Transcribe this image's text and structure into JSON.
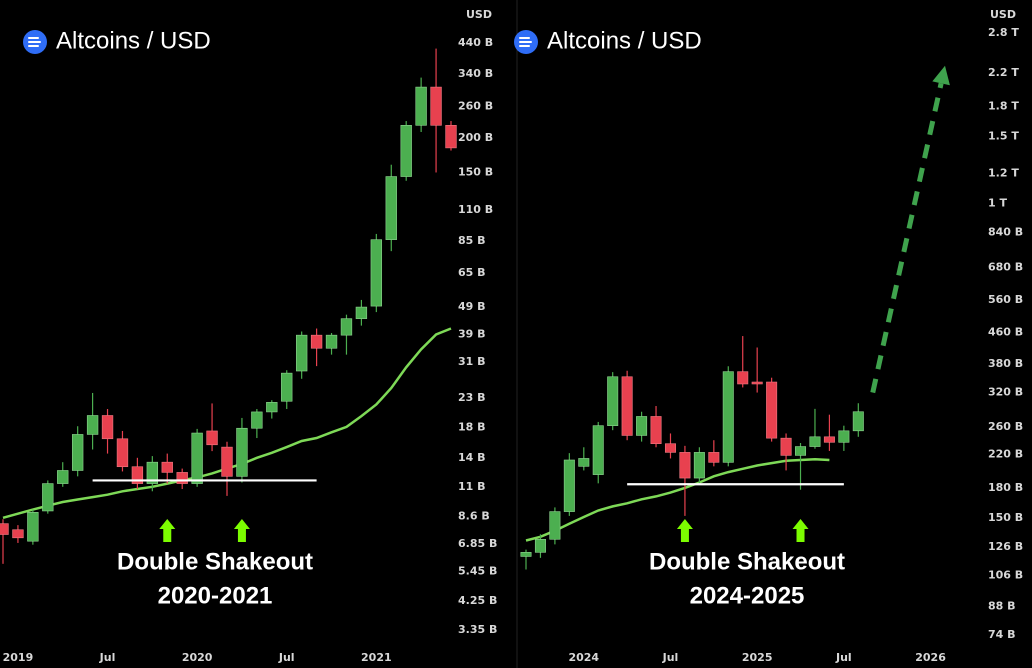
{
  "chart_data": [
    {
      "type": "candlestick",
      "title": "Altcoins / USD",
      "ylabel": "USD",
      "log_y": true,
      "x": [
        "2018-12",
        "2019-01",
        "2019-02",
        "2019-03",
        "2019-04",
        "2019-05",
        "2019-06",
        "2019-07",
        "2019-08",
        "2019-09",
        "2019-10",
        "2019-11",
        "2019-12",
        "2020-01",
        "2020-02",
        "2020-03",
        "2020-04",
        "2020-05",
        "2020-06",
        "2020-07",
        "2020-08",
        "2020-09",
        "2020-10",
        "2020-11",
        "2020-12",
        "2021-01",
        "2021-02",
        "2021-03",
        "2021-04",
        "2021-05",
        "2021-06"
      ],
      "open": [
        8.1,
        7.7,
        7.0,
        9.0,
        11.3,
        12.6,
        17.0,
        19.9,
        16.4,
        13.0,
        11.3,
        13.5,
        12.4,
        11.3,
        17.5,
        15.3,
        12.0,
        17.9,
        20.5,
        22.4,
        28.8,
        38.8,
        34.8,
        38.8,
        44.5,
        49.4,
        85.8,
        145,
        222,
        305,
        222
      ],
      "high": [
        8.4,
        8.0,
        9.1,
        11.6,
        13.5,
        18.2,
        24,
        21,
        17.5,
        14,
        14.2,
        14.5,
        12.8,
        17.8,
        22,
        16,
        19.5,
        21,
        22.6,
        29,
        40,
        41,
        39.5,
        46,
        52,
        90,
        160,
        230,
        330,
        420,
        230
      ],
      "low": [
        5.8,
        6.9,
        6.8,
        8.8,
        11.0,
        12.0,
        15,
        14.5,
        12.5,
        10.8,
        10.6,
        11.3,
        10.8,
        11.0,
        14.8,
        10.2,
        11.4,
        16.5,
        19.4,
        21,
        27,
        30,
        33,
        33,
        42,
        47,
        78,
        140,
        210,
        150,
        180
      ],
      "close": [
        7.4,
        7.2,
        8.9,
        11.3,
        12.6,
        17.0,
        19.9,
        16.4,
        13.0,
        11.3,
        13.5,
        12.4,
        11.3,
        17.2,
        15.6,
        12.0,
        17.9,
        20.5,
        22.2,
        28.3,
        38.8,
        34.8,
        38.8,
        44.5,
        49,
        85.8,
        145,
        222,
        305,
        222,
        184
      ],
      "ma": [
        8.5,
        8.8,
        9.1,
        9.4,
        9.7,
        9.9,
        10.1,
        10.3,
        10.6,
        10.8,
        11.0,
        11.3,
        11.6,
        11.9,
        12.3,
        12.8,
        13.3,
        14.0,
        14.6,
        15.3,
        16.1,
        16.5,
        17.3,
        18.1,
        19.8,
        21.8,
        25,
        29.7,
        34.5,
        39,
        41
      ],
      "colors": {
        "up": "#4caf50",
        "down": "#e8414f",
        "ma": "#7ed957",
        "support": "#ffffff",
        "arrow": "#7cfc00"
      },
      "xlim": [
        "2018-12",
        "2021-06"
      ],
      "xticks": [
        {
          "value": "2019-01",
          "label": "2019"
        },
        {
          "value": "2019-07",
          "label": "Jul"
        },
        {
          "value": "2020-01",
          "label": "2020"
        },
        {
          "value": "2020-07",
          "label": "Jul"
        },
        {
          "value": "2021-01",
          "label": "2021"
        }
      ],
      "ylim": [
        2.44,
        629
      ],
      "yticks": [
        {
          "value": 440,
          "label": "440 B"
        },
        {
          "value": 340,
          "label": "340 B"
        },
        {
          "value": 260,
          "label": "260 B"
        },
        {
          "value": 200,
          "label": "200 B"
        },
        {
          "value": 150,
          "label": "150 B"
        },
        {
          "value": 110,
          "label": "110 B"
        },
        {
          "value": 85,
          "label": "85 B"
        },
        {
          "value": 65,
          "label": "65 B"
        },
        {
          "value": 49,
          "label": "49 B"
        },
        {
          "value": 39,
          "label": "39 B"
        },
        {
          "value": 31,
          "label": "31 B"
        },
        {
          "value": 23,
          "label": "23 B"
        },
        {
          "value": 18,
          "label": "18 B"
        },
        {
          "value": 14,
          "label": "14 B"
        },
        {
          "value": 11,
          "label": "11 B"
        },
        {
          "value": 8.6,
          "label": "8.6 B"
        },
        {
          "value": 6.85,
          "label": "6.85 B"
        },
        {
          "value": 5.45,
          "label": "5.45 B"
        },
        {
          "value": 4.25,
          "label": "4.25 B"
        },
        {
          "value": 3.35,
          "label": "3.35 B"
        }
      ],
      "support": {
        "value": 11.6,
        "from": "2019-06",
        "to": "2020-09"
      },
      "shakeouts": [
        "2019-11",
        "2020-04"
      ],
      "annotation": [
        "Double Shakeout",
        "2020-2021"
      ]
    },
    {
      "type": "candlestick",
      "title": "Altcoins / USD",
      "ylabel": "USD",
      "log_y": true,
      "x": [
        "2023-09",
        "2023-10",
        "2023-11",
        "2023-12",
        "2024-01",
        "2024-02",
        "2024-03",
        "2024-04",
        "2024-05",
        "2024-06",
        "2024-07",
        "2024-08",
        "2024-09",
        "2024-10",
        "2024-11",
        "2024-12",
        "2025-01",
        "2025-02",
        "2025-03",
        "2025-04",
        "2025-05",
        "2025-06",
        "2025-07",
        "2025-08"
      ],
      "open": [
        119,
        122,
        132,
        156,
        205,
        195,
        262,
        352,
        247,
        277,
        235,
        223,
        191,
        223,
        210,
        363,
        341,
        341,
        243,
        219,
        231,
        245,
        237,
        254
      ],
      "high": [
        124,
        136,
        160,
        222,
        230,
        268,
        362,
        365,
        285,
        295,
        250,
        232,
        230,
        240,
        375,
        450,
        420,
        350,
        250,
        236,
        290,
        280,
        262,
        300
      ],
      "low": [
        110,
        118,
        128,
        152,
        200,
        185,
        255,
        240,
        238,
        230,
        215,
        152,
        185,
        205,
        205,
        330,
        320,
        238,
        200,
        178,
        228,
        225,
        225,
        245
      ],
      "close": [
        122,
        132,
        156,
        213,
        215,
        262,
        352,
        247,
        277,
        235,
        223,
        191,
        223,
        210,
        363,
        337,
        337,
        243,
        219,
        231,
        245,
        237,
        254,
        285
      ],
      "ma": [
        131,
        134,
        139,
        145,
        151,
        157,
        161,
        164,
        168,
        171,
        175,
        180,
        186,
        193,
        198,
        202,
        206,
        209,
        212,
        213,
        214,
        213,
        null,
        null
      ],
      "colors": {
        "up": "#4caf50",
        "down": "#e8414f",
        "ma": "#7ed957",
        "support": "#ffffff",
        "arrow": "#7cfc00",
        "projection": "#3fa34d"
      },
      "xlim": [
        "2023-09",
        "2026-02"
      ],
      "xticks": [
        {
          "value": "2024-01",
          "label": "2024"
        },
        {
          "value": "2024-07",
          "label": "Jul"
        },
        {
          "value": "2025-01",
          "label": "2025"
        },
        {
          "value": "2025-07",
          "label": "Jul"
        },
        {
          "value": "2026-01",
          "label": "2026"
        }
      ],
      "ylim": [
        60.7,
        3420
      ],
      "yticks": [
        {
          "value": 2800,
          "label": "2.8 T"
        },
        {
          "value": 2200,
          "label": "2.2 T"
        },
        {
          "value": 1800,
          "label": "1.8 T"
        },
        {
          "value": 1500,
          "label": "1.5 T"
        },
        {
          "value": 1200,
          "label": "1.2 T"
        },
        {
          "value": 1000,
          "label": "1 T"
        },
        {
          "value": 840,
          "label": "840 B"
        },
        {
          "value": 680,
          "label": "680 B"
        },
        {
          "value": 560,
          "label": "560 B"
        },
        {
          "value": 460,
          "label": "460 B"
        },
        {
          "value": 380,
          "label": "380 B"
        },
        {
          "value": 320,
          "label": "320 B"
        },
        {
          "value": 260,
          "label": "260 B"
        },
        {
          "value": 220,
          "label": "220 B"
        },
        {
          "value": 180,
          "label": "180 B"
        },
        {
          "value": 150,
          "label": "150 B"
        },
        {
          "value": 126,
          "label": "126 B"
        },
        {
          "value": 106,
          "label": "106 B"
        },
        {
          "value": 88,
          "label": "88 B"
        },
        {
          "value": 74,
          "label": "74 B"
        }
      ],
      "support": {
        "value": 184,
        "from": "2024-04",
        "to": "2025-07"
      },
      "shakeouts": [
        "2024-08",
        "2025-04"
      ],
      "projection": {
        "from": [
          "2025-09",
          320
        ],
        "to": [
          "2026-02",
          2300
        ]
      },
      "annotation": [
        "Double Shakeout",
        "2024-2025"
      ]
    }
  ]
}
